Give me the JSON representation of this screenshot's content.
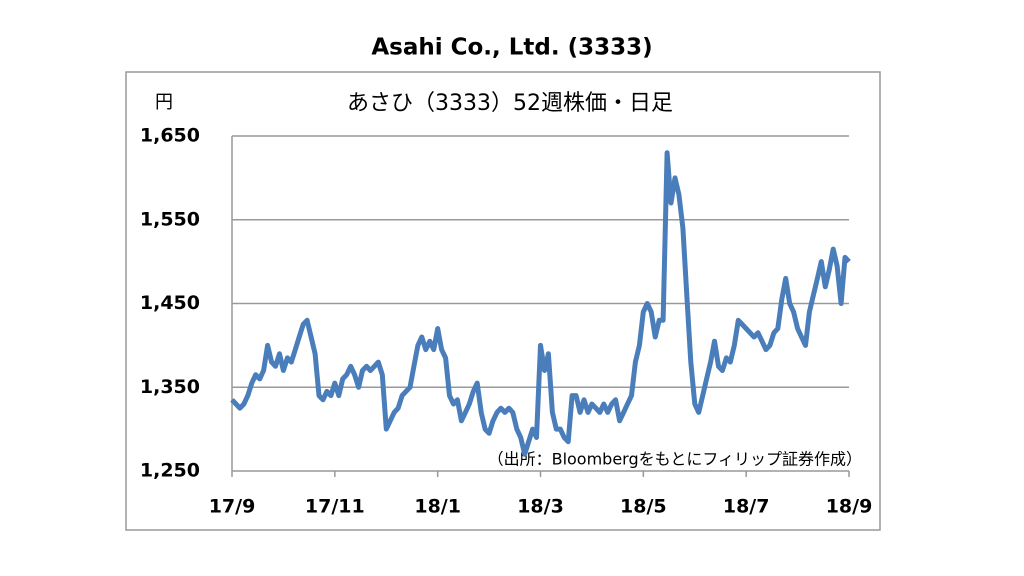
{
  "chart_data": {
    "type": "line",
    "title": "Asahi Co., Ltd. (3333)",
    "subtitle": "あさひ（3333）52週株価・日足",
    "y_label": "円",
    "annotation": "（出所：Bloombergをもとにフィリップ証券作成）",
    "categories": [
      "17/9",
      null,
      null,
      null,
      null,
      null,
      null,
      null,
      null,
      null,
      null,
      null,
      null,
      null,
      null,
      null,
      null,
      null,
      null,
      null,
      null,
      null,
      null,
      null,
      null,
      null,
      "17/11",
      null,
      null,
      null,
      null,
      null,
      null,
      null,
      null,
      null,
      null,
      null,
      null,
      null,
      null,
      null,
      null,
      null,
      null,
      null,
      null,
      null,
      null,
      null,
      null,
      null,
      "18/1",
      null,
      null,
      null,
      null,
      null,
      null,
      null,
      null,
      null,
      null,
      null,
      null,
      null,
      null,
      null,
      null,
      null,
      null,
      null,
      null,
      null,
      null,
      null,
      null,
      null,
      "18/3",
      null,
      null,
      null,
      null,
      null,
      null,
      null,
      null,
      null,
      null,
      null,
      null,
      null,
      null,
      null,
      null,
      null,
      null,
      null,
      null,
      null,
      null,
      null,
      null,
      null,
      "18/5",
      null,
      null,
      null,
      null,
      null,
      null,
      null,
      null,
      null,
      null,
      null,
      null,
      null,
      null,
      null,
      null,
      null,
      null,
      null,
      null,
      null,
      null,
      null,
      null,
      null,
      "18/7",
      null,
      null,
      null,
      null,
      null,
      null,
      null,
      null,
      null,
      null,
      null,
      null,
      null,
      null,
      null,
      null,
      null,
      null,
      null,
      null,
      null,
      null,
      null,
      null,
      null,
      "18/9"
    ],
    "series": [
      {
        "name": "あさひ",
        "color": "#4a7ebb",
        "values": [
          1335,
          1330,
          1325,
          1330,
          1340,
          1355,
          1365,
          1360,
          1370,
          1400,
          1380,
          1375,
          1390,
          1370,
          1385,
          1380,
          1395,
          1410,
          1425,
          1430,
          1410,
          1390,
          1340,
          1335,
          1345,
          1340,
          1355,
          1340,
          1360,
          1365,
          1375,
          1365,
          1350,
          1370,
          1375,
          1370,
          1375,
          1380,
          1365,
          1300,
          1310,
          1320,
          1325,
          1340,
          1345,
          1350,
          1375,
          1400,
          1410,
          1395,
          1405,
          1395,
          1420,
          1395,
          1385,
          1340,
          1330,
          1335,
          1310,
          1320,
          1330,
          1345,
          1355,
          1320,
          1300,
          1295,
          1310,
          1320,
          1325,
          1320,
          1325,
          1320,
          1300,
          1290,
          1270,
          1285,
          1300,
          1290,
          1400,
          1370,
          1390,
          1320,
          1300,
          1300,
          1290,
          1285,
          1340,
          1340,
          1320,
          1335,
          1320,
          1330,
          1325,
          1320,
          1330,
          1320,
          1330,
          1335,
          1310,
          1320,
          1330,
          1340,
          1380,
          1400,
          1440,
          1450,
          1440,
          1410,
          1430,
          1430,
          1630,
          1570,
          1600,
          1580,
          1540,
          1460,
          1380,
          1330,
          1320,
          1340,
          1360,
          1380,
          1405,
          1375,
          1370,
          1385,
          1380,
          1400,
          1430,
          1425,
          1420,
          1415,
          1410,
          1415,
          1405,
          1395,
          1400,
          1415,
          1420,
          1455,
          1480,
          1450,
          1440,
          1420,
          1410,
          1400,
          1440,
          1460,
          1480,
          1500,
          1470,
          1490,
          1515,
          1495,
          1450,
          1505,
          1500
        ]
      }
    ],
    "ylim": [
      1250,
      1650
    ],
    "yticks": [
      {
        "value": 1250,
        "label": "1,250"
      },
      {
        "value": 1350,
        "label": "1,350"
      },
      {
        "value": 1450,
        "label": "1,450"
      },
      {
        "value": 1550,
        "label": "1,550"
      },
      {
        "value": 1650,
        "label": "1,650"
      }
    ],
    "grid": true
  }
}
